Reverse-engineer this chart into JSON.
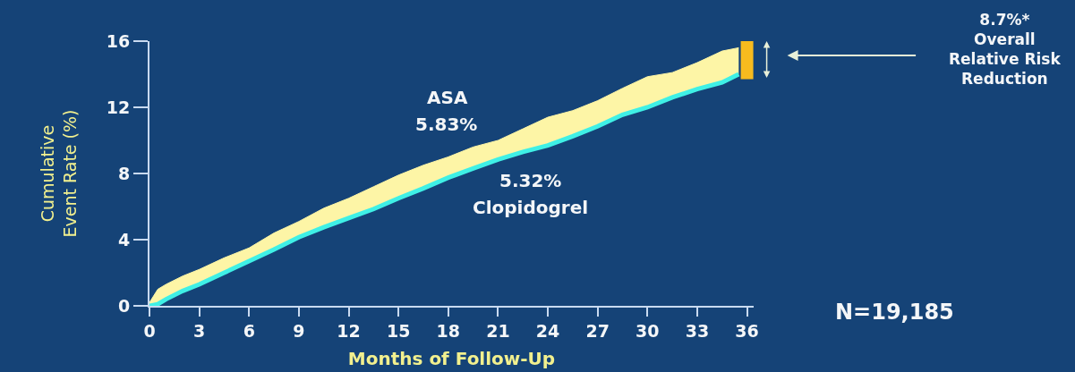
{
  "chart_data": {
    "type": "line",
    "xlabel": "Months of Follow-Up",
    "ylabel": "Cumulative\nEvent Rate (%)",
    "x": [
      0,
      0.5,
      1,
      2,
      3,
      4.5,
      6,
      7.5,
      9,
      10.5,
      12,
      13.5,
      15,
      16.5,
      18,
      19.5,
      21,
      22.5,
      24,
      25.5,
      27,
      28.5,
      30,
      31.5,
      33,
      34.5,
      35.5
    ],
    "series": [
      {
        "name": "ASA",
        "type": "area",
        "color": "#fdf5a6",
        "values": [
          0.2,
          1.0,
          1.3,
          1.8,
          2.2,
          2.9,
          3.5,
          4.4,
          5.1,
          5.9,
          6.5,
          7.2,
          7.9,
          8.5,
          9.0,
          9.6,
          10.0,
          10.7,
          11.4,
          11.8,
          12.4,
          13.15,
          13.85,
          14.1,
          14.7,
          15.4,
          15.6
        ]
      },
      {
        "name": "Clopidogrel",
        "color": "#3ff0e6",
        "values": [
          0,
          0.1,
          0.4,
          0.9,
          1.3,
          2.0,
          2.7,
          3.4,
          4.15,
          4.75,
          5.3,
          5.85,
          6.5,
          7.1,
          7.75,
          8.3,
          8.85,
          9.3,
          9.7,
          10.25,
          10.85,
          11.55,
          12.0,
          12.6,
          13.1,
          13.5,
          14.0
        ]
      },
      {
        "type": "bar",
        "color": "#f7bb1e",
        "x": [
          36
        ],
        "base": [
          13.7
        ],
        "values": [
          2.3
        ]
      }
    ],
    "xlim": [
      0,
      36.4
    ],
    "xticks": [
      0,
      3,
      6,
      9,
      12,
      15,
      18,
      21,
      24,
      27,
      30,
      33,
      36
    ],
    "ylim": [
      0,
      16
    ],
    "yticks": [
      0,
      4,
      8,
      12,
      16
    ],
    "annotations": [
      "5.83%",
      "5.32%",
      "8.7%*\nOverall\nRelative Risk\nReduction",
      "N=19,185"
    ]
  }
}
